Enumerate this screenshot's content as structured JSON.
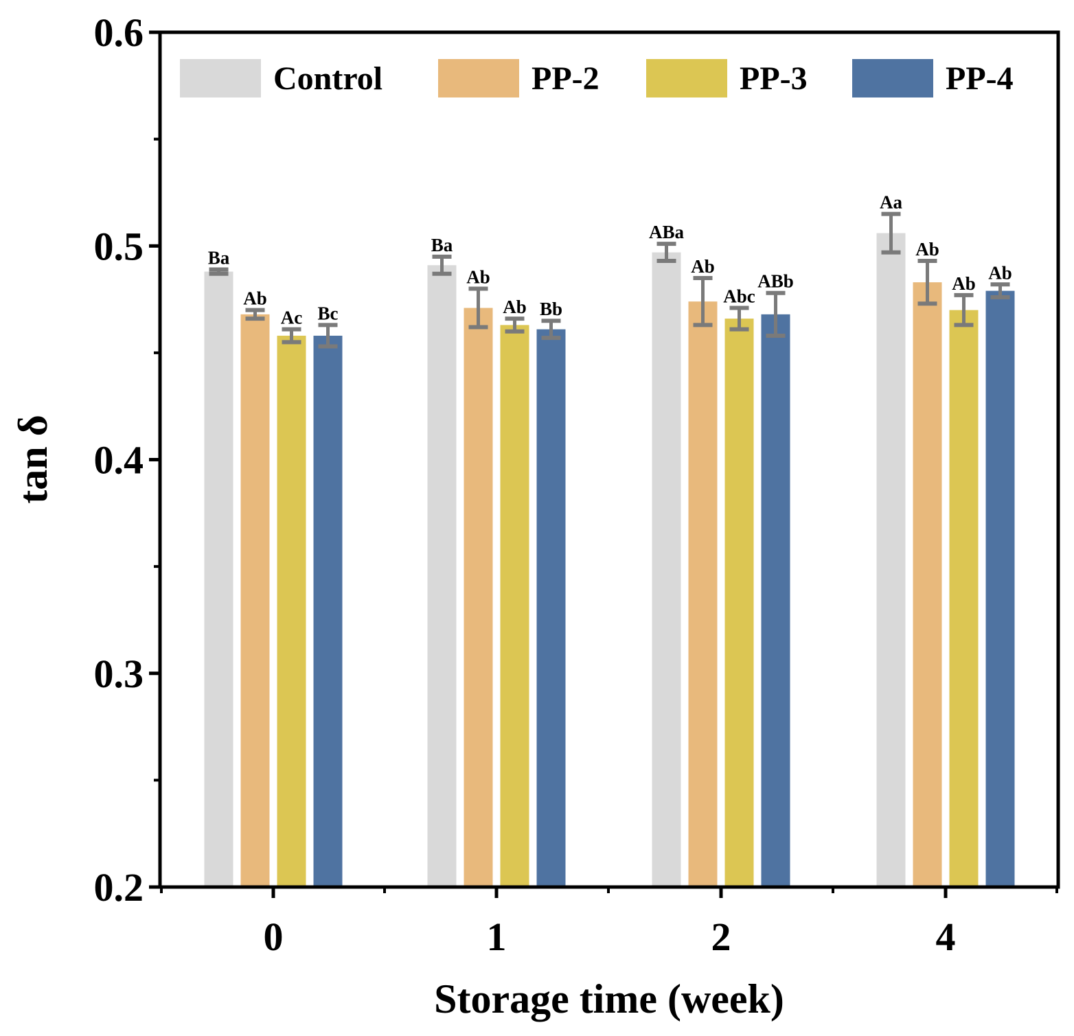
{
  "chart_data": {
    "type": "bar",
    "title": "",
    "xlabel": "Storage time (week)",
    "ylabel": "tan δ",
    "ylim": [
      0.2,
      0.6
    ],
    "yticks": [
      "0.2",
      "0.3",
      "0.4",
      "0.5",
      "0.6"
    ],
    "categories": [
      "0",
      "1",
      "2",
      "4"
    ],
    "legend_position": "top",
    "grid": false,
    "series": [
      {
        "name": "Control",
        "color": "#d9d9d9",
        "values": [
          0.488,
          0.491,
          0.497,
          0.506
        ],
        "errors": [
          0.001,
          0.004,
          0.004,
          0.009
        ],
        "labels": [
          "Ba",
          "Ba",
          "ABa",
          "Aa"
        ]
      },
      {
        "name": "PP-2",
        "color": "#e8b97c",
        "values": [
          0.468,
          0.471,
          0.474,
          0.483
        ],
        "errors": [
          0.002,
          0.009,
          0.011,
          0.01
        ],
        "labels": [
          "Ab",
          "Ab",
          "Ab",
          "Ab"
        ]
      },
      {
        "name": "PP-3",
        "color": "#dcc653",
        "values": [
          0.458,
          0.463,
          0.466,
          0.47
        ],
        "errors": [
          0.003,
          0.003,
          0.005,
          0.007
        ],
        "labels": [
          "Ac",
          "Ab",
          "Abc",
          "Ab"
        ]
      },
      {
        "name": "PP-4",
        "color": "#4f73a1",
        "values": [
          0.458,
          0.461,
          0.468,
          0.479
        ],
        "errors": [
          0.005,
          0.004,
          0.01,
          0.003
        ],
        "labels": [
          "Bc",
          "Bb",
          "ABb",
          "Ab"
        ]
      }
    ],
    "error_bar_color": "#7a7a7a"
  }
}
